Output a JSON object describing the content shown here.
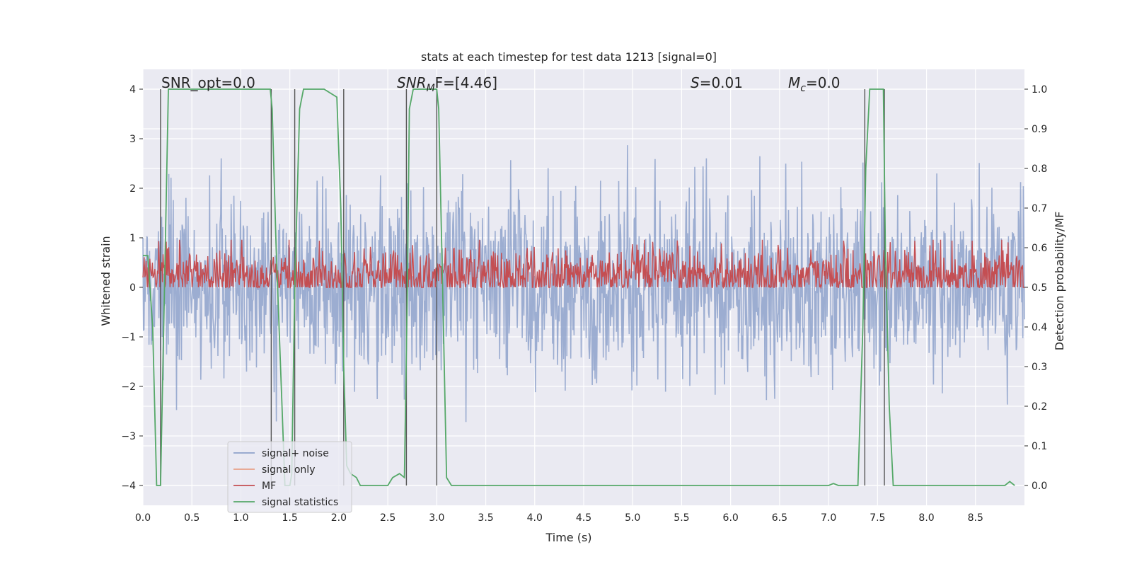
{
  "chart_data": {
    "type": "line",
    "title": "stats at each timestep for test data 1213 [signal=0]",
    "xlabel": "Time (s)",
    "ylabel_left": "Whitened strain",
    "ylabel_right": "Detection probability/MF",
    "xlim": [
      0.0,
      9.0
    ],
    "ylim_left": [
      -4.4,
      4.4
    ],
    "ylim_right": [
      -0.05,
      1.05
    ],
    "x_ticks": [
      "0.0",
      "0.5",
      "1.0",
      "1.5",
      "2.0",
      "2.5",
      "3.0",
      "3.5",
      "4.0",
      "4.5",
      "5.0",
      "5.5",
      "6.0",
      "6.5",
      "7.0",
      "7.5",
      "8.0",
      "8.5"
    ],
    "y_ticks_left": [
      "−4",
      "−3",
      "−2",
      "−1",
      "0",
      "1",
      "2",
      "3",
      "4"
    ],
    "y_ticks_right": [
      "0.0",
      "0.1",
      "0.2",
      "0.3",
      "0.4",
      "0.5",
      "0.6",
      "0.7",
      "0.8",
      "0.9",
      "1.0"
    ],
    "grid": true,
    "legend_position": "lower-left",
    "annotations": {
      "snr_opt": "SNR_opt=0.0",
      "snr_mf_prefix": "SNR",
      "snr_mf_sub": "M",
      "snr_mf_suffix": "F=[4.46]",
      "s_label": "S",
      "s_value": "=0.01",
      "mc_label": "M",
      "mc_sub": "c",
      "mc_value": "=0.0"
    },
    "series": [
      {
        "name": "signal+ noise",
        "color": "#8ea2cb",
        "axis": "left",
        "kind": "noise",
        "sigma": 0.95
      },
      {
        "name": "signal only",
        "color": "#e8a188",
        "axis": "left",
        "values": []
      },
      {
        "name": "MF",
        "color": "#c44e52",
        "axis": "right",
        "kind": "noise",
        "baseline": 0.53,
        "sigma": 0.035
      },
      {
        "name": "signal statistics",
        "color": "#55a868",
        "axis": "right",
        "x": [
          0.0,
          0.05,
          0.1,
          0.12,
          0.14,
          0.18,
          0.22,
          0.26,
          0.3,
          1.3,
          1.32,
          1.36,
          1.42,
          1.45,
          1.5,
          1.52,
          1.55,
          1.6,
          1.64,
          1.7,
          1.85,
          1.98,
          2.02,
          2.05,
          2.08,
          2.12,
          2.18,
          2.22,
          2.3,
          2.5,
          2.55,
          2.62,
          2.67,
          2.7,
          2.72,
          2.76,
          2.8,
          3.0,
          3.02,
          3.06,
          3.1,
          3.15,
          3.2,
          7.0,
          7.05,
          7.1,
          7.3,
          7.35,
          7.38,
          7.42,
          7.46,
          7.56,
          7.58,
          7.62,
          7.66,
          8.8,
          8.85,
          8.9
        ],
        "y": [
          0.58,
          0.58,
          0.4,
          0.2,
          0.0,
          0.0,
          0.5,
          1.0,
          1.0,
          1.0,
          0.95,
          0.6,
          0.2,
          0.0,
          0.0,
          0.03,
          0.5,
          0.95,
          1.0,
          1.0,
          1.0,
          0.98,
          0.7,
          0.3,
          0.05,
          0.03,
          0.02,
          0.0,
          0.0,
          0.0,
          0.02,
          0.03,
          0.02,
          0.5,
          0.95,
          1.0,
          1.0,
          1.0,
          0.95,
          0.5,
          0.02,
          0.0,
          0.0,
          0.0,
          0.005,
          0.0,
          0.0,
          0.4,
          0.8,
          1.0,
          1.0,
          1.0,
          0.6,
          0.2,
          0.0,
          0.0,
          0.01,
          0.0
        ]
      }
    ],
    "vlines_x": [
      0.18,
      1.31,
      1.55,
      2.05,
      2.69,
      3.0,
      7.37,
      7.57
    ]
  }
}
